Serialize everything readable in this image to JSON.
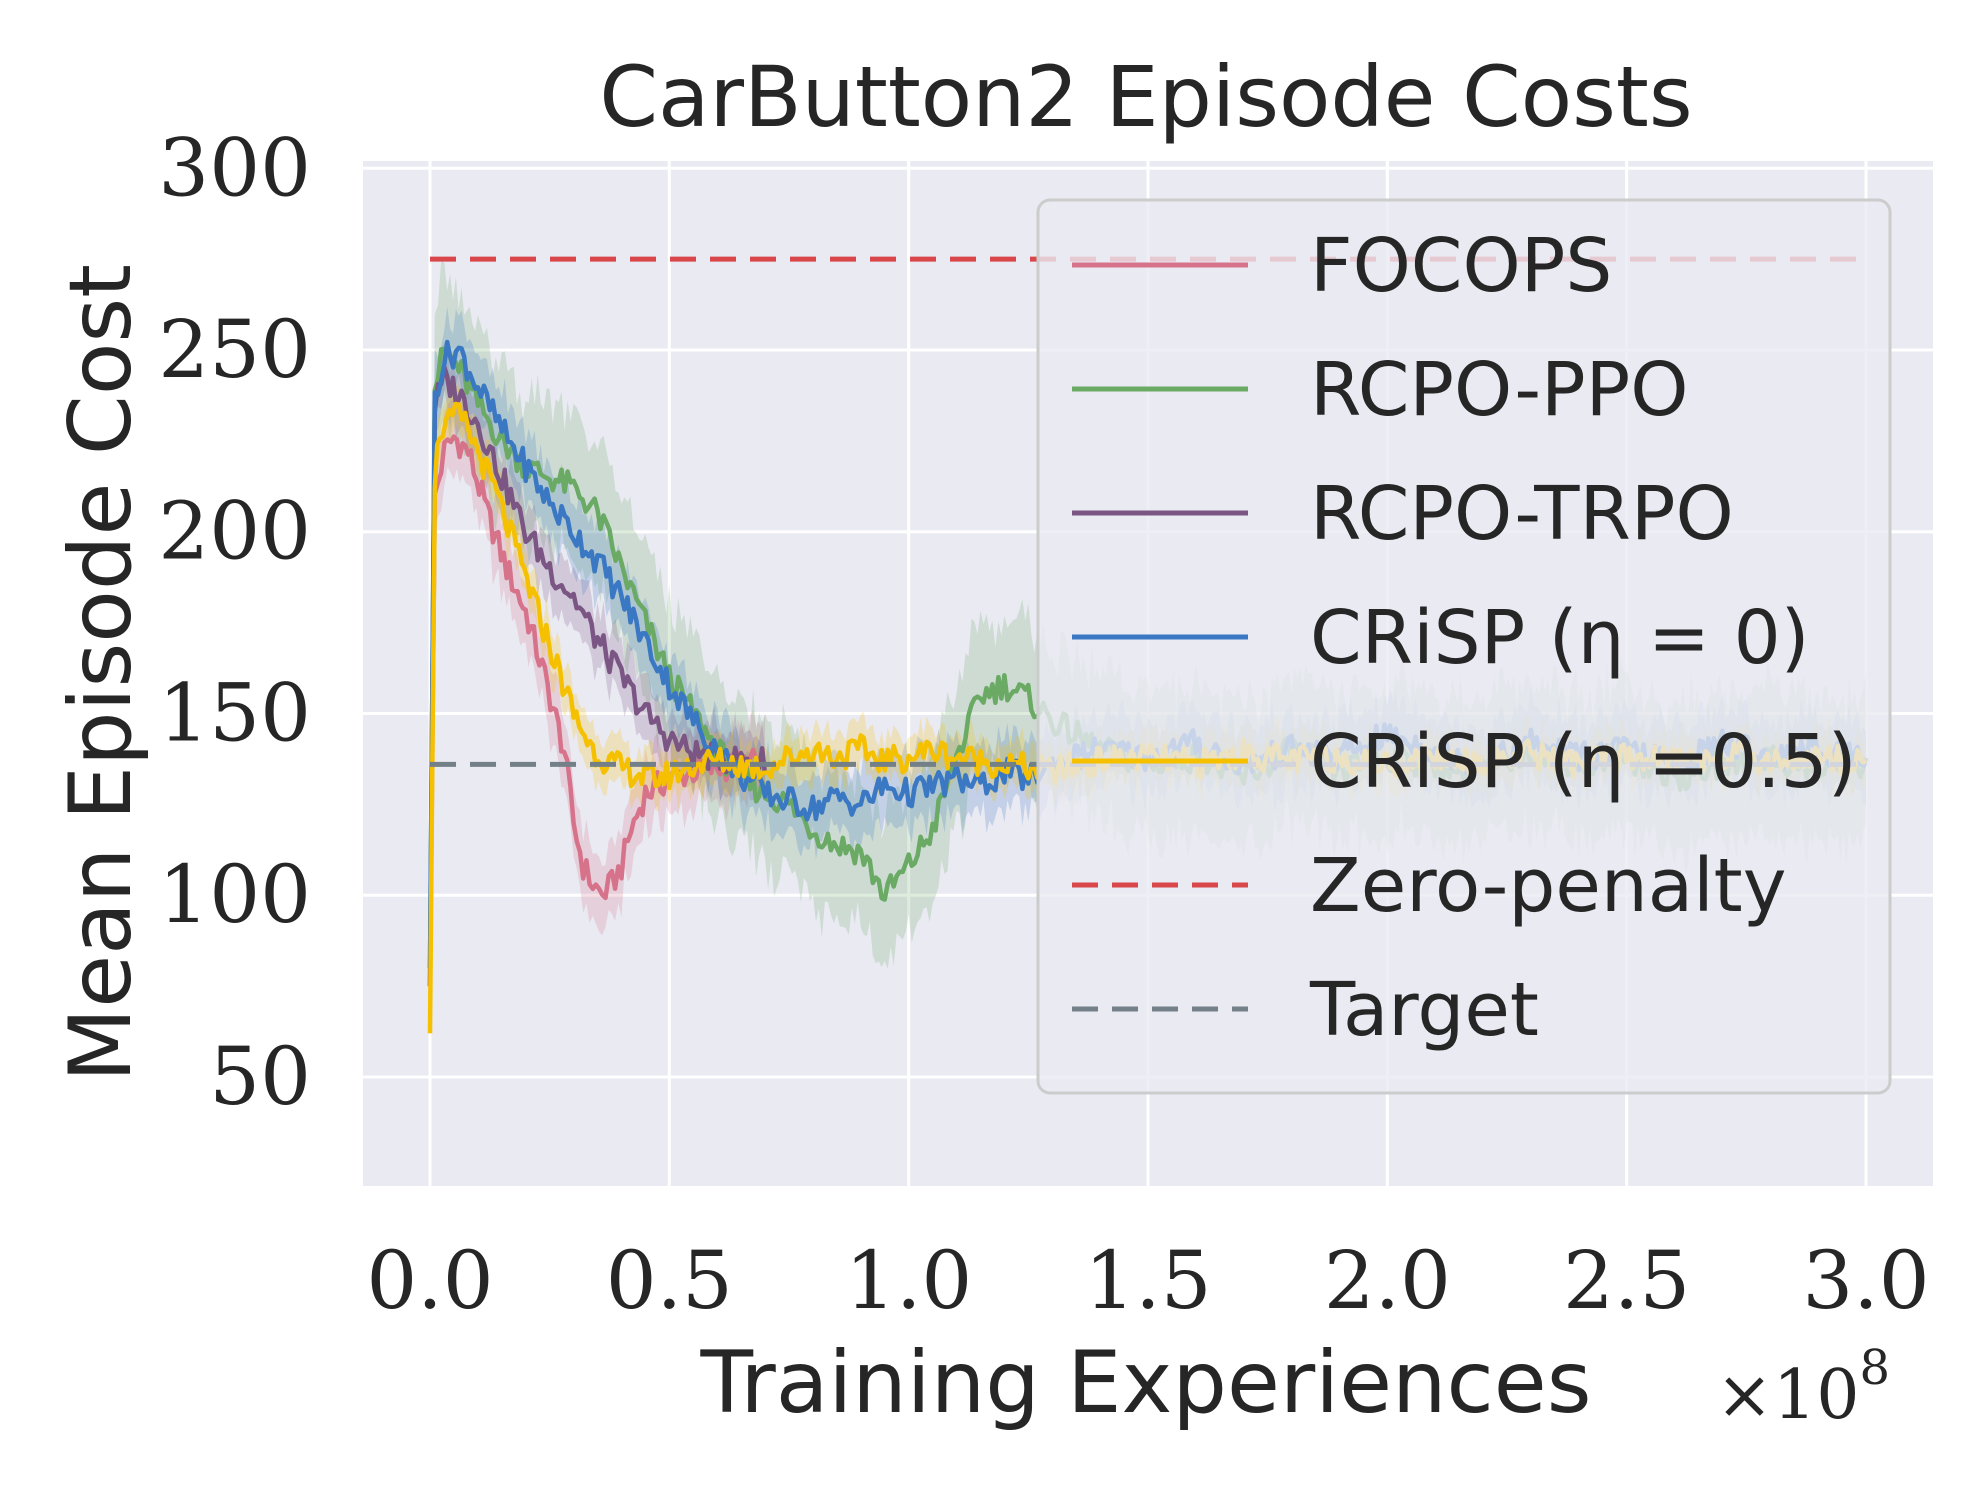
{
  "chart_data": {
    "type": "line",
    "title": "CarButton2 Episode Costs",
    "xlabel": "Training Experiences",
    "ylabel": "Mean Episode Cost",
    "x_multiplier": "×10",
    "x_multiplier_exp": "8",
    "xlim": [
      -0.14,
      3.14
    ],
    "ylim": [
      20,
      302
    ],
    "xticks": [
      0.0,
      0.5,
      1.0,
      1.5,
      2.0,
      2.5,
      3.0
    ],
    "xtick_labels": [
      "0.0",
      "0.5",
      "1.0",
      "1.5",
      "2.0",
      "2.5",
      "3.0"
    ],
    "yticks": [
      50,
      100,
      150,
      200,
      250,
      300
    ],
    "ytick_labels": [
      "50",
      "100",
      "150",
      "200",
      "250",
      "300"
    ],
    "grid": true,
    "legend_position": "upper-right",
    "colors": {
      "background": "#eaeaf2",
      "grid": "#ffffff",
      "text": "#262626",
      "focops": "#d6728a",
      "rcpo_ppo": "#6aaa64",
      "rcpo_trpo": "#7b5583",
      "crisp0": "#3a78c4",
      "crisp05": "#f5c000",
      "zero_penalty": "#d9474b",
      "target": "#748088"
    },
    "series": [
      {
        "key": "focops",
        "name": "FOCOPS",
        "legend_label": "FOCOPS",
        "style": "solid",
        "x": [
          0.0,
          0.01,
          0.03,
          0.05,
          0.08,
          0.12,
          0.16,
          0.2,
          0.24,
          0.28,
          0.3,
          0.32,
          0.34,
          0.36,
          0.38,
          0.4,
          0.42,
          0.45,
          0.5,
          0.55,
          0.6,
          0.65,
          0.7
        ],
        "values": [
          75,
          210,
          222,
          226,
          222,
          205,
          190,
          178,
          160,
          140,
          120,
          108,
          103,
          100,
          103,
          108,
          118,
          128,
          132,
          134,
          135,
          136,
          137
        ],
        "band": 12
      },
      {
        "key": "rcpo_ppo",
        "name": "RCPO-PPO",
        "legend_label": "RCPO-PPO",
        "style": "solid",
        "x": [
          0.0,
          0.01,
          0.03,
          0.06,
          0.1,
          0.15,
          0.2,
          0.25,
          0.3,
          0.35,
          0.4,
          0.45,
          0.5,
          0.55,
          0.6,
          0.65,
          0.7,
          0.75,
          0.8,
          0.85,
          0.9,
          0.95,
          1.0,
          1.05,
          1.1,
          1.15,
          1.2,
          1.25,
          1.3,
          1.4,
          1.5,
          1.6,
          1.7,
          1.8,
          1.9,
          2.0,
          2.1,
          2.2,
          2.3,
          2.4,
          2.5,
          2.6,
          2.7,
          2.8,
          2.9,
          3.0
        ],
        "values": [
          80,
          240,
          250,
          245,
          235,
          225,
          218,
          215,
          212,
          205,
          190,
          175,
          160,
          150,
          140,
          132,
          128,
          125,
          118,
          114,
          112,
          100,
          108,
          118,
          138,
          155,
          158,
          154,
          148,
          140,
          136,
          138,
          132,
          140,
          134,
          138,
          136,
          134,
          140,
          136,
          138,
          132,
          136,
          138,
          134,
          136
        ],
        "band": 25
      },
      {
        "key": "rcpo_trpo",
        "name": "RCPO-TRPO",
        "legend_label": "RCPO-TRPO",
        "style": "solid",
        "x": [
          0.0,
          0.01,
          0.03,
          0.06,
          0.1,
          0.15,
          0.2,
          0.25,
          0.3,
          0.35,
          0.4,
          0.45,
          0.5,
          0.55,
          0.6,
          0.65,
          0.7
        ],
        "values": [
          75,
          235,
          242,
          238,
          230,
          215,
          200,
          190,
          182,
          170,
          160,
          150,
          143,
          139,
          138,
          137,
          137
        ],
        "band": 10
      },
      {
        "key": "crisp0",
        "name": "CRiSP (η = 0)",
        "legend_label": "CRiSP (η = 0)",
        "style": "solid",
        "x": [
          0.0,
          0.01,
          0.03,
          0.06,
          0.1,
          0.15,
          0.2,
          0.25,
          0.3,
          0.35,
          0.4,
          0.45,
          0.5,
          0.55,
          0.6,
          0.65,
          0.7,
          0.75,
          0.8,
          0.85,
          0.9,
          0.95,
          1.0,
          1.05,
          1.1,
          1.15,
          1.2,
          1.25,
          1.3,
          1.4,
          1.5,
          1.6,
          1.7,
          1.8,
          1.9,
          2.0,
          2.1,
          2.2,
          2.3,
          2.4,
          2.5,
          2.6,
          2.7,
          2.8,
          2.9,
          3.0
        ],
        "values": [
          80,
          238,
          248,
          250,
          240,
          228,
          218,
          208,
          200,
          192,
          182,
          170,
          158,
          148,
          140,
          133,
          128,
          126,
          124,
          127,
          125,
          130,
          128,
          130,
          132,
          130,
          134,
          132,
          136,
          140,
          138,
          142,
          136,
          140,
          138,
          144,
          140,
          136,
          142,
          138,
          140,
          136,
          142,
          138,
          140,
          138
        ],
        "band": 12
      },
      {
        "key": "crisp05",
        "name": "CRiSP (η =0.5)",
        "legend_label": "CRiSP (η =0.5)",
        "style": "solid",
        "x": [
          0.0,
          0.01,
          0.02,
          0.04,
          0.06,
          0.08,
          0.1,
          0.14,
          0.18,
          0.22,
          0.26,
          0.3,
          0.34,
          0.38,
          0.42,
          0.46,
          0.5,
          0.55,
          0.6,
          0.65,
          0.7,
          0.75,
          0.8,
          0.85,
          0.9,
          0.95,
          1.0,
          1.05,
          1.1,
          1.15,
          1.2,
          1.25,
          1.3,
          1.4,
          1.5,
          1.6,
          1.7,
          1.8,
          1.9,
          2.0,
          2.1,
          2.2,
          2.3,
          2.4,
          2.5,
          2.6,
          2.7,
          2.8,
          2.9,
          3.0
        ],
        "values": [
          62,
          215,
          228,
          230,
          232,
          228,
          222,
          210,
          195,
          180,
          165,
          150,
          140,
          136,
          134,
          132,
          133,
          136,
          137,
          136,
          135,
          138,
          140,
          138,
          140,
          137,
          138,
          140,
          138,
          137,
          136,
          135,
          134,
          137,
          138,
          136,
          139,
          137,
          138,
          136,
          138,
          137,
          139,
          136,
          138,
          137,
          139,
          137,
          138,
          137
        ],
        "band": 8
      }
    ],
    "reference_lines": [
      {
        "key": "zero_penalty",
        "name": "Zero-penalty",
        "legend_label": "Zero-penalty",
        "style": "dashed",
        "y": 275,
        "x_range": [
          0.0,
          3.0
        ]
      },
      {
        "key": "target",
        "name": "Target",
        "legend_label": "Target",
        "style": "dashed",
        "y": 136,
        "x_range": [
          0.0,
          3.0
        ]
      }
    ]
  }
}
